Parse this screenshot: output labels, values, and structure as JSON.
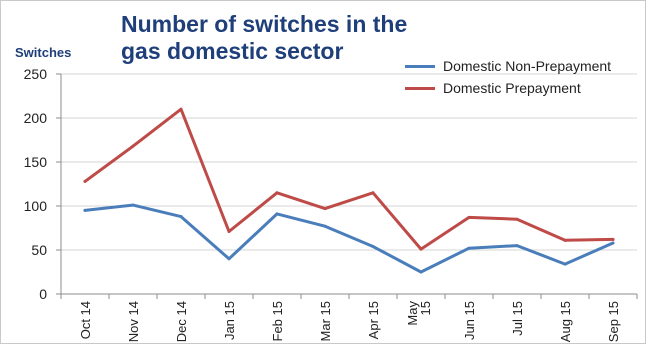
{
  "chart_data": {
    "type": "line",
    "title": "Number of switches in the gas domestic sector",
    "ylabel": "Switches",
    "xlabel": "",
    "categories": [
      "Oct 14",
      "Nov 14",
      "Dec 14",
      "Jan 15",
      "Feb 15",
      "Mar 15",
      "Apr 15",
      "May 15",
      "Jun 15",
      "Jul 15",
      "Aug 15",
      "Sep 15"
    ],
    "ylim": [
      0,
      250
    ],
    "yticks": [
      0,
      50,
      100,
      150,
      200,
      250
    ],
    "grid": true,
    "legend": "top-right",
    "series": [
      {
        "name": "Domestic Non-Prepayment",
        "color": "#4a7ebb",
        "values": [
          95,
          101,
          88,
          40,
          91,
          77,
          54,
          25,
          52,
          55,
          34,
          58
        ]
      },
      {
        "name": "Domestic Prepayment",
        "color": "#be4b48",
        "values": [
          128,
          168,
          210,
          71,
          115,
          97,
          115,
          51,
          87,
          85,
          61,
          62
        ]
      }
    ]
  }
}
